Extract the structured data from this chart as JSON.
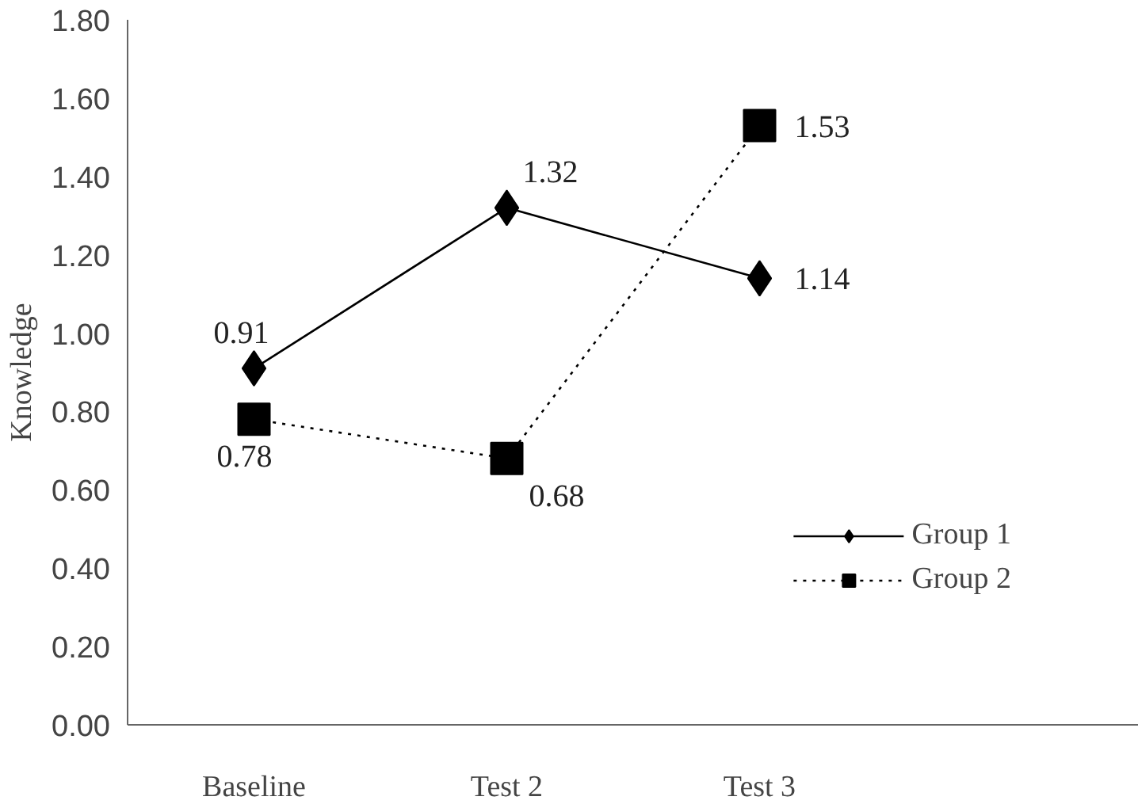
{
  "chart_data": {
    "type": "line",
    "ylabel": "Knowledge",
    "categories": [
      "Baseline",
      "Test 2",
      "Test 3"
    ],
    "series": [
      {
        "name": "Group 1",
        "color": "#000000",
        "values": [
          0.91,
          1.32,
          1.14
        ],
        "marker": "diamond",
        "line_style": "solid"
      },
      {
        "name": "Group 2",
        "color": "#000000",
        "values": [
          0.78,
          0.68,
          1.53
        ],
        "marker": "square",
        "line_style": "dotted"
      }
    ],
    "ylim": [
      0,
      1.8
    ],
    "yticks": [
      {
        "value": 0,
        "label": "0.00"
      },
      {
        "value": 0.2,
        "label": "0.20"
      },
      {
        "value": 0.4,
        "label": "0.40"
      },
      {
        "value": 0.6,
        "label": "0.60"
      },
      {
        "value": 0.8,
        "label": "0.80"
      },
      {
        "value": 1.0,
        "label": "1.00"
      },
      {
        "value": 1.2,
        "label": "1.20"
      },
      {
        "value": 1.4,
        "label": "1.40"
      },
      {
        "value": 1.6,
        "label": "1.60"
      },
      {
        "value": 1.8,
        "label": "1.80"
      }
    ],
    "data_labels": true,
    "grid": false,
    "legend": "bottom right"
  }
}
